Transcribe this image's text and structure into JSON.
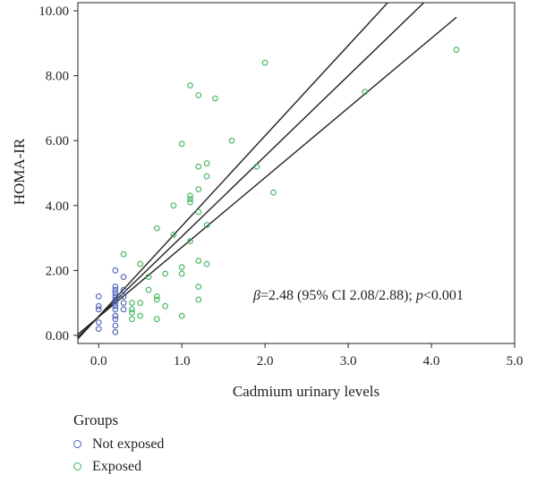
{
  "chart_data": {
    "type": "scatter",
    "xlabel": "Cadmium urinary levels",
    "ylabel": "HOMA-IR",
    "xlim": [
      -0.25,
      5.0
    ],
    "ylim": [
      -0.25,
      10.25
    ],
    "xticks": [
      "0.0",
      "1.0",
      "2.0",
      "3.0",
      "4.0",
      "5.0"
    ],
    "yticks": [
      "0.00",
      "2.00",
      "4.00",
      "6.00",
      "8.00",
      "10.00"
    ],
    "annotation": {
      "beta": "β",
      "beta_text": "=2.48 (95% CI 2.08/2.88); ",
      "p": "p",
      "p_text": "<0.001"
    },
    "legend": {
      "title": "Groups",
      "position": "bottom-left"
    },
    "series": [
      {
        "name": "Not exposed",
        "color": "#4a5fb5",
        "points": [
          [
            0.0,
            1.2
          ],
          [
            0.0,
            0.9
          ],
          [
            0.0,
            0.8
          ],
          [
            0.0,
            0.4
          ],
          [
            0.0,
            0.2
          ],
          [
            0.2,
            2.0
          ],
          [
            0.2,
            1.5
          ],
          [
            0.2,
            1.4
          ],
          [
            0.2,
            1.3
          ],
          [
            0.2,
            1.2
          ],
          [
            0.2,
            1.1
          ],
          [
            0.2,
            1.0
          ],
          [
            0.2,
            0.9
          ],
          [
            0.2,
            0.8
          ],
          [
            0.2,
            0.6
          ],
          [
            0.2,
            0.5
          ],
          [
            0.2,
            0.3
          ],
          [
            0.2,
            0.1
          ],
          [
            0.3,
            1.8
          ],
          [
            0.3,
            1.4
          ],
          [
            0.3,
            1.2
          ],
          [
            0.3,
            1.0
          ],
          [
            0.3,
            0.8
          ]
        ]
      },
      {
        "name": "Exposed",
        "color": "#3db35a",
        "points": [
          [
            0.3,
            2.5
          ],
          [
            0.4,
            1.0
          ],
          [
            0.4,
            0.8
          ],
          [
            0.4,
            0.7
          ],
          [
            0.4,
            0.5
          ],
          [
            0.5,
            2.2
          ],
          [
            0.5,
            1.0
          ],
          [
            0.5,
            0.6
          ],
          [
            0.6,
            1.8
          ],
          [
            0.6,
            1.4
          ],
          [
            0.7,
            3.3
          ],
          [
            0.7,
            1.2
          ],
          [
            0.7,
            1.1
          ],
          [
            0.7,
            0.5
          ],
          [
            0.8,
            1.9
          ],
          [
            0.8,
            0.9
          ],
          [
            0.9,
            4.0
          ],
          [
            0.9,
            3.1
          ],
          [
            1.0,
            5.9
          ],
          [
            1.0,
            2.1
          ],
          [
            1.0,
            1.9
          ],
          [
            1.0,
            0.6
          ],
          [
            1.1,
            7.7
          ],
          [
            1.1,
            4.3
          ],
          [
            1.1,
            4.2
          ],
          [
            1.1,
            4.1
          ],
          [
            1.1,
            2.9
          ],
          [
            1.2,
            7.4
          ],
          [
            1.2,
            5.2
          ],
          [
            1.2,
            4.5
          ],
          [
            1.2,
            3.8
          ],
          [
            1.2,
            2.3
          ],
          [
            1.2,
            1.5
          ],
          [
            1.2,
            1.1
          ],
          [
            1.3,
            5.3
          ],
          [
            1.3,
            4.9
          ],
          [
            1.3,
            3.4
          ],
          [
            1.3,
            2.2
          ],
          [
            1.4,
            7.3
          ],
          [
            1.6,
            6.0
          ],
          [
            1.9,
            5.2
          ],
          [
            2.0,
            8.4
          ],
          [
            2.1,
            4.4
          ],
          [
            3.2,
            7.5
          ],
          [
            4.3,
            8.8
          ]
        ]
      }
    ],
    "fit_lines": [
      {
        "name": "upper",
        "x0": -0.25,
        "y0": -0.11,
        "x1": 3.6,
        "y1": 10.6
      },
      {
        "name": "mid",
        "x0": -0.25,
        "y0": -0.05,
        "x1": 4.05,
        "y1": 10.6
      },
      {
        "name": "lower",
        "x0": -0.25,
        "y0": 0.03,
        "x1": 4.3,
        "y1": 9.8
      }
    ]
  }
}
